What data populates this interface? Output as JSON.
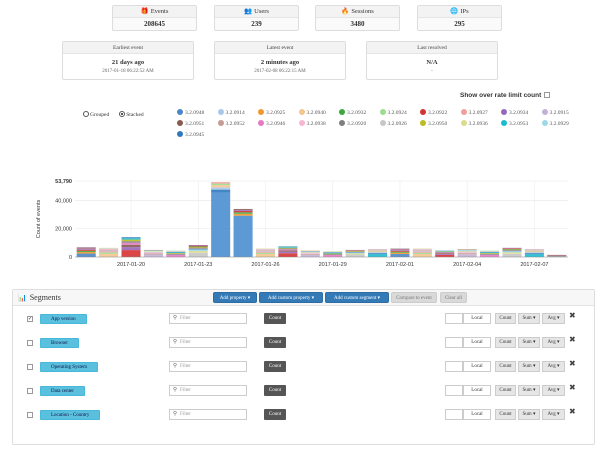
{
  "stats": [
    {
      "label": "Events",
      "value": "208645",
      "icon": "gift-icon"
    },
    {
      "label": "Users",
      "value": "239",
      "icon": "users-icon"
    },
    {
      "label": "Sessions",
      "value": "3480",
      "icon": "fire-icon"
    },
    {
      "label": "IPs",
      "value": "295",
      "icon": "globe-icon"
    }
  ],
  "events_info": [
    {
      "label": "Earliest event",
      "value": "21 days ago",
      "sub": "2017-01-18 06:22:52 AM"
    },
    {
      "label": "Latest event",
      "value": "2 minutes ago",
      "sub": "2017-02-08 06:22:15 AM"
    },
    {
      "label": "Last resolved",
      "value": "N/A",
      "sub": "-"
    }
  ],
  "rate_limit_label": "Show over rate limit count",
  "mode": {
    "grouped": "Grouped",
    "stacked": "Stacked",
    "selected": "stacked"
  },
  "legend": [
    {
      "name": "3.2.0948",
      "color": "#4b86c8"
    },
    {
      "name": "3.2.0914",
      "color": "#a9c8e8"
    },
    {
      "name": "3.2.0925",
      "color": "#f0972f"
    },
    {
      "name": "3.2.0940",
      "color": "#f5c48f"
    },
    {
      "name": "3.2.0932",
      "color": "#3aa93a"
    },
    {
      "name": "3.2.0924",
      "color": "#9bdc8d"
    },
    {
      "name": "3.2.0922",
      "color": "#d63232"
    },
    {
      "name": "3.2.0927",
      "color": "#f29e9a"
    },
    {
      "name": "3.2.0934",
      "color": "#9667bc"
    },
    {
      "name": "3.2.0915",
      "color": "#c3b2d6"
    },
    {
      "name": "3.2.0951",
      "color": "#8a5a4d"
    },
    {
      "name": "3.2.0952",
      "color": "#c49c94"
    },
    {
      "name": "3.2.0946",
      "color": "#e57ac5"
    },
    {
      "name": "3.2.0938",
      "color": "#f7b6d2"
    },
    {
      "name": "3.2.0920",
      "color": "#7f7f7f"
    },
    {
      "name": "3.2.0926",
      "color": "#c7c7c7"
    },
    {
      "name": "3.2.0950",
      "color": "#bcbd22"
    },
    {
      "name": "3.2.0936",
      "color": "#dbdb8d"
    },
    {
      "name": "3.2.0953",
      "color": "#17becf"
    },
    {
      "name": "3.2.0929",
      "color": "#9edae5"
    },
    {
      "name": "3.2.0945",
      "color": "#2f79bf"
    }
  ],
  "chart_data": {
    "type": "bar",
    "stacked": true,
    "ylabel": "Count of events",
    "ymax_label": "53,790",
    "ylim": [
      0,
      53790
    ],
    "yticks": [
      0,
      20000,
      40000
    ],
    "ytick_labels": [
      "0",
      "20,000",
      "40,000"
    ],
    "xtick_labels": [
      "2017-01-20",
      "2017-01-23",
      "2017-01-26",
      "2017-01-29",
      "2017-02-01",
      "2017-02-04",
      "2017-02-07"
    ],
    "xtick_positions": [
      2,
      5,
      8,
      11,
      14,
      17,
      20
    ],
    "categories": [
      "2017-01-18",
      "2017-01-19",
      "2017-01-20",
      "2017-01-21",
      "2017-01-22",
      "2017-01-23",
      "2017-01-24",
      "2017-01-25",
      "2017-01-26",
      "2017-01-27",
      "2017-01-28",
      "2017-01-29",
      "2017-01-30",
      "2017-01-31",
      "2017-02-01",
      "2017-02-02",
      "2017-02-03",
      "2017-02-04",
      "2017-02-05",
      "2017-02-06",
      "2017-02-07",
      "2017-02-08"
    ],
    "totals": [
      7000,
      6500,
      14000,
      5000,
      4500,
      8500,
      53000,
      34000,
      6000,
      7500,
      4500,
      4000,
      5000,
      5500,
      6000,
      6000,
      4500,
      5500,
      4500,
      6500,
      5500,
      1500
    ],
    "grid": true
  },
  "segments": {
    "title": "Segments",
    "toolbar": {
      "add_property": "Add property ▾",
      "add_custom_property": "Add custom property ▾",
      "add_custom_segment": "Add custom segment ▾",
      "compare": "Compare to event",
      "clear": "Clear all"
    },
    "filter_placeholder": "Filter",
    "count_label": "Count",
    "local_label": "Local",
    "count_small": "Count",
    "sum_label": "Sum ▾",
    "avg_label": "Avg ▾",
    "rows": [
      {
        "label": "App version",
        "checked": true
      },
      {
        "label": "Browser",
        "checked": false
      },
      {
        "label": "Operating System",
        "checked": false
      },
      {
        "label": "Data center",
        "checked": false
      },
      {
        "label": "Location - Country",
        "checked": false
      }
    ]
  }
}
